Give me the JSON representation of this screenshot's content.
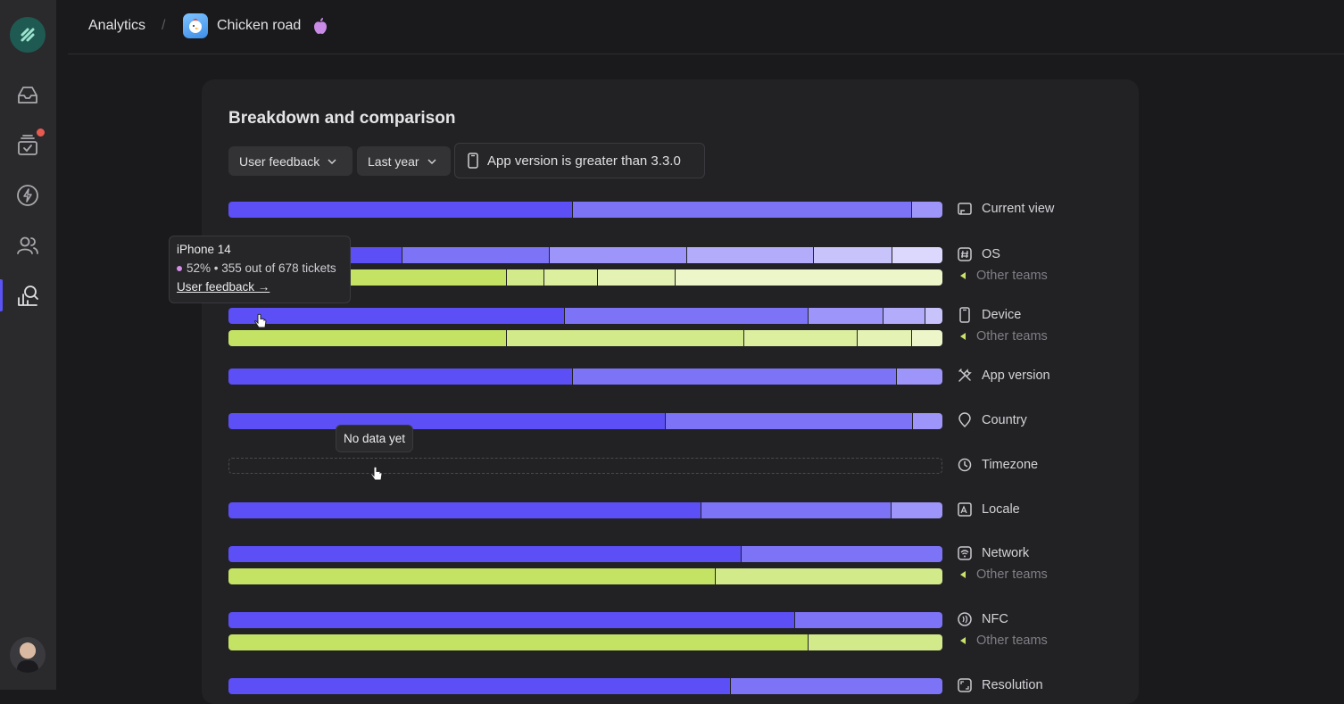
{
  "breadcrumb": {
    "root": "Analytics",
    "separator": "/",
    "app_name": "Chicken road"
  },
  "card": {
    "title": "Breakdown and comparison"
  },
  "filters": {
    "type": "User feedback",
    "period": "Last year",
    "condition": "App version is greater than 3.3.0"
  },
  "colors": {
    "primary": [
      "#5b4ff5",
      "#7d73f7",
      "#9d95f9",
      "#b3acfa",
      "#c8c3fb",
      "#dcd8fd"
    ],
    "other": [
      "#c4e365",
      "#d3ea8a",
      "#dcef9f",
      "#e4f3b3",
      "#ecf6c8"
    ]
  },
  "rows": [
    {
      "label": "Current view",
      "icon": "view-icon",
      "segments": [
        48.3,
        47.5,
        4.2
      ]
    },
    {
      "label": "OS",
      "icon": "hash-icon",
      "segments": [
        24.4,
        20.6,
        19.2,
        17.8,
        11.0,
        7.0
      ],
      "other_label": "Other teams",
      "other_segments": [
        39.0,
        5.3,
        7.5,
        10.8,
        37.4
      ]
    },
    {
      "label": "Device",
      "icon": "phone-icon",
      "segments": [
        47.1,
        34.1,
        10.6,
        5.8,
        2.4
      ],
      "other_label": "Other teams",
      "other_segments": [
        39.0,
        33.3,
        15.8,
        7.7,
        4.2
      ]
    },
    {
      "label": "App version",
      "icon": "tools-icon",
      "segments": [
        48.2,
        45.4,
        6.4
      ]
    },
    {
      "label": "Country",
      "icon": "pin-icon",
      "segments": [
        61.3,
        34.6,
        4.1
      ]
    },
    {
      "label": "Timezone",
      "icon": "clock-icon",
      "segments": [],
      "empty_text": "No data yet"
    },
    {
      "label": "Locale",
      "icon": "locale-icon",
      "segments": [
        66.3,
        26.6,
        7.1
      ]
    },
    {
      "label": "Network",
      "icon": "wifi-icon",
      "segments": [
        71.9,
        28.1
      ],
      "other_label": "Other teams",
      "other_segments": [
        68.3,
        31.7
      ]
    },
    {
      "label": "NFC",
      "icon": "nfc-icon",
      "segments": [
        79.4,
        20.6
      ],
      "other_label": "Other teams",
      "other_segments": [
        81.3,
        18.7
      ]
    },
    {
      "label": "Resolution",
      "icon": "resolution-icon",
      "segments": [
        70.4,
        29.6
      ]
    }
  ],
  "tooltip": {
    "title": "iPhone 14",
    "stat": "52% • 355 out of 678 tickets",
    "link": "User feedback →"
  }
}
